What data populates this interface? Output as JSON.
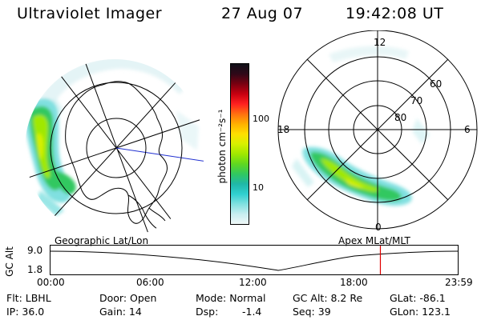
{
  "header": {
    "instrument": "Ultraviolet Imager",
    "date": "27 Aug 07",
    "time": "19:42:08 UT"
  },
  "colorbar": {
    "unit_label": "photon cm⁻²s⁻¹",
    "ticks": [
      "100",
      "10"
    ],
    "colors": [
      "#101018",
      "#300818",
      "#7a0010",
      "#c80010",
      "#ff2020",
      "#ff7010",
      "#ffb000",
      "#ffe000",
      "#d8f000",
      "#a0e800",
      "#60d820",
      "#30c860",
      "#20b8a8",
      "#30d0d0",
      "#80e0e0",
      "#c8eef0",
      "#f0f8f8"
    ]
  },
  "left_map": {
    "caption": "Geographic Lat/Lon"
  },
  "right_map": {
    "caption": "Apex MLat/MLT",
    "mlt_labels": {
      "top": "12",
      "left": "18",
      "right": "6",
      "bottom": "0"
    },
    "lat_labels": [
      "60",
      "70",
      "80"
    ]
  },
  "timeline": {
    "axis_label": "GC Alt",
    "y_ticks": [
      "9.0",
      "1.8"
    ],
    "x_ticks": [
      "00:00",
      "06:00",
      "12:00",
      "18:00",
      "23:59"
    ],
    "current_time_fraction": 0.81,
    "marker_color": "#e00000"
  },
  "info": {
    "filter": "Flt: LBHL",
    "ip": "IP: 36.0",
    "door": "Door: Open",
    "gain": "Gain: 14",
    "mode": "Mode: Normal",
    "dsp_label": "Dsp:",
    "dsp_value": "-1.4",
    "gc_alt": "GC Alt: 8.2 Re",
    "seq": "Seq: 39",
    "glat": "GLat: -86.1",
    "glon": "GLon: 123.1"
  }
}
